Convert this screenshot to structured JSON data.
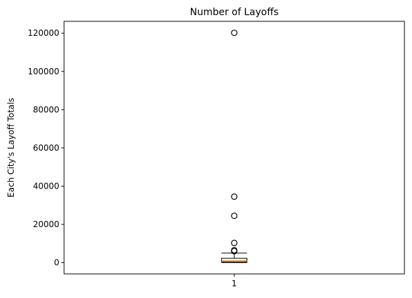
{
  "chart_data": {
    "type": "boxplot",
    "title": "Number of Layoffs",
    "xlabel": "",
    "ylabel": "Each City's Layoff Totals",
    "categories": [
      "1"
    ],
    "ylim": [
      -5900,
      126200
    ],
    "yticks": [
      0,
      20000,
      40000,
      60000,
      80000,
      100000,
      120000
    ],
    "ytick_labels": [
      "0",
      "20000",
      "40000",
      "60000",
      "80000",
      "100000",
      "120000"
    ],
    "grid": false,
    "box": {
      "category": "1",
      "whisker_low": 0,
      "q1": 300,
      "median": 900,
      "q3": 2300,
      "whisker_high": 5000,
      "outliers": [
        120200,
        34500,
        24500,
        10300,
        6500,
        6000
      ]
    },
    "colors": {
      "box": "#000000",
      "median": "#ff7f0e",
      "outlier_edge": "#000000"
    }
  }
}
